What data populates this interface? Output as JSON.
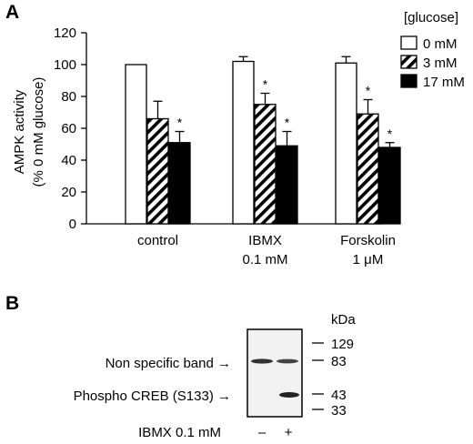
{
  "panel_a": {
    "label": "A",
    "legend_title": "[glucose]",
    "star": "*"
  },
  "panel_b": {
    "label": "B",
    "kda_label": "kDa",
    "markers": [
      {
        "label": "129"
      },
      {
        "label": "83"
      },
      {
        "label": "43"
      },
      {
        "label": "33"
      }
    ],
    "band_labels": [
      "Non specific band →",
      "Phospho CREB (S133) →"
    ],
    "treatment_label": "IBMX 0.1 mM",
    "lanes": [
      "–",
      "+"
    ]
  },
  "chart_data": {
    "type": "bar",
    "title": "",
    "ylabel_lines": [
      "AMPK activity",
      "(% 0 mM glucose)"
    ],
    "xlabel": "",
    "ylim": [
      0,
      120
    ],
    "yticks": [
      0,
      20,
      40,
      60,
      80,
      100,
      120
    ],
    "categories": [
      {
        "lines": [
          "control"
        ]
      },
      {
        "lines": [
          "IBMX",
          "0.1 mM"
        ]
      },
      {
        "lines": [
          "Forskolin",
          "1 μM"
        ]
      }
    ],
    "series": [
      {
        "name": "0 mM",
        "pattern": "white",
        "values": [
          100,
          102,
          101
        ],
        "errors": [
          0,
          3,
          4
        ],
        "significant": [
          false,
          false,
          false
        ]
      },
      {
        "name": "3 mM",
        "pattern": "hatched",
        "values": [
          66,
          75,
          69
        ],
        "errors": [
          11,
          7,
          9
        ],
        "significant": [
          false,
          true,
          true
        ]
      },
      {
        "name": "17 mM",
        "pattern": "black",
        "values": [
          51,
          49,
          48
        ],
        "errors": [
          7,
          9,
          3
        ],
        "significant": [
          true,
          true,
          true
        ]
      }
    ],
    "grid": false,
    "legend_position": "top-right"
  }
}
